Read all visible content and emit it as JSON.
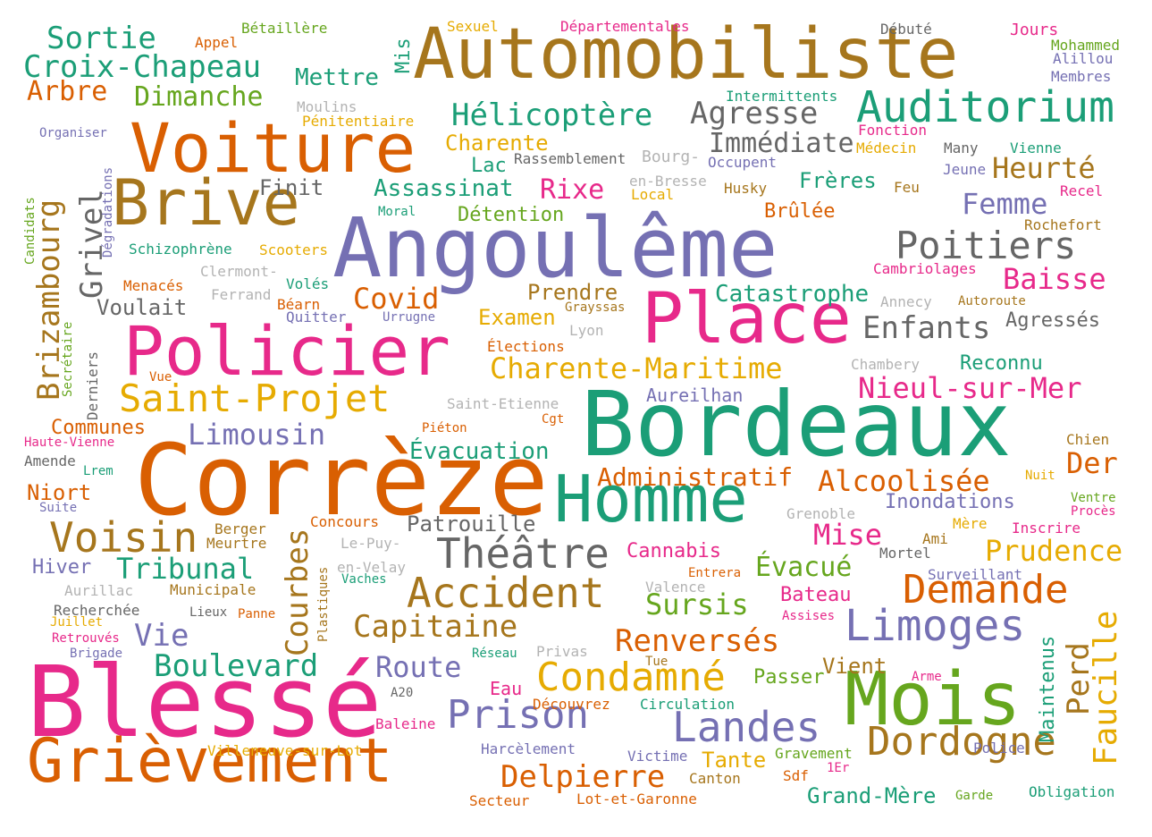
{
  "palette": {
    "teal": "#1b9e77",
    "orange": "#d95f02",
    "purple": "#7570b3",
    "pink": "#e7298a",
    "green": "#66a61e",
    "yellow": "#e6ab02",
    "brown": "#a6761d",
    "gray": "#666666",
    "lightgray": "#b3b3b3"
  },
  "words": [
    {
      "text": "Automobiliste",
      "color": "brown"
    },
    {
      "text": "Angoulême",
      "color": "purple"
    },
    {
      "text": "Bordeaux",
      "color": "teal"
    },
    {
      "text": "Corrèze",
      "color": "orange"
    },
    {
      "text": "Blessé",
      "color": "pink"
    },
    {
      "text": "Voiture",
      "color": "orange"
    },
    {
      "text": "Brive",
      "color": "brown"
    },
    {
      "text": "Policier",
      "color": "pink"
    },
    {
      "text": "Place",
      "color": "pink"
    },
    {
      "text": "Mois",
      "color": "green"
    },
    {
      "text": "Homme",
      "color": "teal"
    },
    {
      "text": "Grièvement",
      "color": "orange"
    },
    {
      "text": "Auditorium",
      "color": "teal"
    },
    {
      "text": "Poitiers",
      "color": "gray"
    },
    {
      "text": "Saint-Projet",
      "color": "yellow"
    },
    {
      "text": "Accident",
      "color": "brown"
    },
    {
      "text": "Théâtre",
      "color": "gray"
    },
    {
      "text": "Limoges",
      "color": "purple"
    },
    {
      "text": "Dordogne",
      "color": "brown"
    },
    {
      "text": "Demande",
      "color": "orange"
    },
    {
      "text": "Condamné",
      "color": "yellow"
    },
    {
      "text": "Prison",
      "color": "purple"
    },
    {
      "text": "Landes",
      "color": "purple"
    },
    {
      "text": "Voisin",
      "color": "brown"
    },
    {
      "text": "Hélicoptère",
      "color": "teal"
    },
    {
      "text": "Agresse",
      "color": "gray"
    },
    {
      "text": "Charente-Maritime",
      "color": "yellow"
    },
    {
      "text": "Nieul-sur-Mer",
      "color": "pink"
    },
    {
      "text": "Sortie",
      "color": "teal"
    },
    {
      "text": "Croix-Chapeau",
      "color": "teal"
    },
    {
      "text": "Arbre",
      "color": "orange"
    },
    {
      "text": "Dimanche",
      "color": "green"
    },
    {
      "text": "Mettre",
      "color": "teal"
    },
    {
      "text": "Heurté",
      "color": "brown"
    },
    {
      "text": "Femme",
      "color": "purple"
    },
    {
      "text": "Baisse",
      "color": "pink"
    },
    {
      "text": "Enfants",
      "color": "gray"
    },
    {
      "text": "Alcoolisée",
      "color": "orange"
    },
    {
      "text": "Der",
      "color": "orange"
    },
    {
      "text": "Prudence",
      "color": "yellow"
    },
    {
      "text": "Capitaine",
      "color": "brown"
    },
    {
      "text": "Renversés",
      "color": "orange"
    },
    {
      "text": "Boulevard",
      "color": "teal"
    },
    {
      "text": "Route",
      "color": "purple"
    },
    {
      "text": "Delpierre",
      "color": "orange"
    },
    {
      "text": "Tribunal",
      "color": "teal"
    },
    {
      "text": "Limousin",
      "color": "purple"
    },
    {
      "text": "Covid",
      "color": "orange"
    },
    {
      "text": "Rixe",
      "color": "pink"
    },
    {
      "text": "Immédiate",
      "color": "gray"
    },
    {
      "text": "Assassinat",
      "color": "teal"
    },
    {
      "text": "Catastrophe",
      "color": "teal"
    },
    {
      "text": "Mise",
      "color": "pink"
    },
    {
      "text": "Évacué",
      "color": "green"
    },
    {
      "text": "Sursis",
      "color": "green"
    },
    {
      "text": "Vie",
      "color": "purple"
    },
    {
      "text": "Grand-Mère",
      "color": "teal"
    },
    {
      "text": "Administratif",
      "color": "orange"
    },
    {
      "text": "Évacuation",
      "color": "teal"
    },
    {
      "text": "Patrouille",
      "color": "gray"
    },
    {
      "text": "Voulait",
      "color": "gray"
    },
    {
      "text": "Prendre",
      "color": "brown"
    },
    {
      "text": "Examen",
      "color": "yellow"
    },
    {
      "text": "Charente",
      "color": "yellow"
    },
    {
      "text": "Lac",
      "color": "teal"
    },
    {
      "text": "Frères",
      "color": "teal"
    },
    {
      "text": "Brûlée",
      "color": "orange"
    },
    {
      "text": "Détention",
      "color": "green"
    },
    {
      "text": "Finit",
      "color": "gray"
    },
    {
      "text": "Reconnu",
      "color": "teal"
    },
    {
      "text": "Agressés",
      "color": "gray"
    },
    {
      "text": "Inondations",
      "color": "purple"
    },
    {
      "text": "Aureilhan",
      "color": "purple"
    },
    {
      "text": "Communes",
      "color": "orange"
    },
    {
      "text": "Niort",
      "color": "orange"
    },
    {
      "text": "Hiver",
      "color": "purple"
    },
    {
      "text": "Eau",
      "color": "pink"
    },
    {
      "text": "Passer",
      "color": "green"
    },
    {
      "text": "Vient",
      "color": "brown"
    },
    {
      "text": "Bateau",
      "color": "pink"
    },
    {
      "text": "Cannabis",
      "color": "pink"
    },
    {
      "text": "Tante",
      "color": "yellow"
    },
    {
      "text": "Brizambourg",
      "color": "brown",
      "vertical": true
    },
    {
      "text": "Grivel",
      "color": "gray",
      "vertical": true
    },
    {
      "text": "Courbes",
      "color": "brown",
      "vertical": true
    },
    {
      "text": "Faucille",
      "color": "yellow",
      "vertical": true
    },
    {
      "text": "Perd",
      "color": "brown",
      "vertical": true
    },
    {
      "text": "Maintenus",
      "color": "teal",
      "vertical": true
    },
    {
      "text": "Mis",
      "color": "teal",
      "vertical": true
    },
    {
      "text": "Derniers",
      "color": "gray",
      "vertical": true
    },
    {
      "text": "Secrétaire",
      "color": "green",
      "vertical": true
    },
    {
      "text": "Plastiques",
      "color": "brown",
      "vertical": true
    },
    {
      "text": "Candidats",
      "color": "green",
      "vertical": true
    },
    {
      "text": "Dégradations",
      "color": "purple",
      "vertical": true
    },
    {
      "text": "Appel",
      "color": "orange"
    },
    {
      "text": "Bétaillère",
      "color": "green"
    },
    {
      "text": "Sexuel",
      "color": "yellow"
    },
    {
      "text": "Départementales",
      "color": "pink"
    },
    {
      "text": "Débuté",
      "color": "gray"
    },
    {
      "text": "Jours",
      "color": "pink"
    },
    {
      "text": "Mohammed",
      "color": "green"
    },
    {
      "text": "Alillou",
      "color": "purple"
    },
    {
      "text": "Membres",
      "color": "purple"
    },
    {
      "text": "Intermittents",
      "color": "teal"
    },
    {
      "text": "Moulins",
      "color": "lightgray"
    },
    {
      "text": "Pénitentiaire",
      "color": "yellow"
    },
    {
      "text": "Organiser",
      "color": "purple"
    },
    {
      "text": "Fonction",
      "color": "pink"
    },
    {
      "text": "Médecin",
      "color": "yellow"
    },
    {
      "text": "Many",
      "color": "gray"
    },
    {
      "text": "Vienne",
      "color": "teal"
    },
    {
      "text": "Jeune",
      "color": "purple"
    },
    {
      "text": "Rassemblement",
      "color": "gray"
    },
    {
      "text": "Bourg-",
      "color": "lightgray"
    },
    {
      "text": "Occupent",
      "color": "purple"
    },
    {
      "text": "en-Bresse",
      "color": "lightgray"
    },
    {
      "text": "Local",
      "color": "yellow"
    },
    {
      "text": "Husky",
      "color": "brown"
    },
    {
      "text": "Feu",
      "color": "brown"
    },
    {
      "text": "Recel",
      "color": "pink"
    },
    {
      "text": "Moral",
      "color": "teal"
    },
    {
      "text": "Rochefort",
      "color": "brown"
    },
    {
      "text": "Schizophrène",
      "color": "teal"
    },
    {
      "text": "Scooters",
      "color": "yellow"
    },
    {
      "text": "Clermont-",
      "color": "lightgray"
    },
    {
      "text": "Ferrand",
      "color": "lightgray"
    },
    {
      "text": "Menacés",
      "color": "orange"
    },
    {
      "text": "Volés",
      "color": "teal"
    },
    {
      "text": "Cambriolages",
      "color": "pink"
    },
    {
      "text": "Béarn",
      "color": "orange"
    },
    {
      "text": "Quitter",
      "color": "purple"
    },
    {
      "text": "Urrugne",
      "color": "purple"
    },
    {
      "text": "Grayssas",
      "color": "brown"
    },
    {
      "text": "Annecy",
      "color": "lightgray"
    },
    {
      "text": "Autoroute",
      "color": "brown"
    },
    {
      "text": "Lyon",
      "color": "lightgray"
    },
    {
      "text": "Élections",
      "color": "orange"
    },
    {
      "text": "Chambery",
      "color": "lightgray"
    },
    {
      "text": "Vue",
      "color": "orange"
    },
    {
      "text": "Saint-Etienne",
      "color": "lightgray"
    },
    {
      "text": "Haute-Vienne",
      "color": "pink"
    },
    {
      "text": "Piéton",
      "color": "orange"
    },
    {
      "text": "Cgt",
      "color": "orange"
    },
    {
      "text": "Chien",
      "color": "brown"
    },
    {
      "text": "Amende",
      "color": "gray"
    },
    {
      "text": "Lrem",
      "color": "teal"
    },
    {
      "text": "Nuit",
      "color": "yellow"
    },
    {
      "text": "Suite",
      "color": "purple"
    },
    {
      "text": "Ventre",
      "color": "green"
    },
    {
      "text": "Procès",
      "color": "pink"
    },
    {
      "text": "Grenoble",
      "color": "lightgray"
    },
    {
      "text": "Mère",
      "color": "yellow"
    },
    {
      "text": "Inscrire",
      "color": "pink"
    },
    {
      "text": "Berger",
      "color": "brown"
    },
    {
      "text": "Concours",
      "color": "orange"
    },
    {
      "text": "Meurtre",
      "color": "brown"
    },
    {
      "text": "Le-Puy-",
      "color": "lightgray"
    },
    {
      "text": "en-Velay",
      "color": "lightgray"
    },
    {
      "text": "Ami",
      "color": "brown"
    },
    {
      "text": "Mortel",
      "color": "gray"
    },
    {
      "text": "Vaches",
      "color": "teal"
    },
    {
      "text": "Entrera",
      "color": "orange"
    },
    {
      "text": "Surveillant",
      "color": "purple"
    },
    {
      "text": "Aurillac",
      "color": "lightgray"
    },
    {
      "text": "Municipale",
      "color": "brown"
    },
    {
      "text": "Valence",
      "color": "lightgray"
    },
    {
      "text": "Recherchée",
      "color": "gray"
    },
    {
      "text": "Lieux",
      "color": "gray"
    },
    {
      "text": "Panne",
      "color": "orange"
    },
    {
      "text": "Assises",
      "color": "pink"
    },
    {
      "text": "Juillet",
      "color": "yellow"
    },
    {
      "text": "Retrouvés",
      "color": "pink"
    },
    {
      "text": "Brigade",
      "color": "purple"
    },
    {
      "text": "Réseau",
      "color": "teal"
    },
    {
      "text": "Privas",
      "color": "lightgray"
    },
    {
      "text": "Tue",
      "color": "brown"
    },
    {
      "text": "Arme",
      "color": "pink"
    },
    {
      "text": "A20",
      "color": "gray"
    },
    {
      "text": "Découvrez",
      "color": "orange"
    },
    {
      "text": "Circulation",
      "color": "teal"
    },
    {
      "text": "Baleine",
      "color": "pink"
    },
    {
      "text": "Villeneuve-sur-Lot",
      "color": "yellow"
    },
    {
      "text": "Harcèlement",
      "color": "purple"
    },
    {
      "text": "Victime",
      "color": "purple"
    },
    {
      "text": "Gravement",
      "color": "green"
    },
    {
      "text": "Police",
      "color": "purple"
    },
    {
      "text": "Canton",
      "color": "brown"
    },
    {
      "text": "1Er",
      "color": "pink"
    },
    {
      "text": "Sdf",
      "color": "orange"
    },
    {
      "text": "Garde",
      "color": "green"
    },
    {
      "text": "Obligation",
      "color": "teal"
    },
    {
      "text": "Secteur",
      "color": "orange"
    },
    {
      "text": "Lot-et-Garonne",
      "color": "orange"
    }
  ]
}
